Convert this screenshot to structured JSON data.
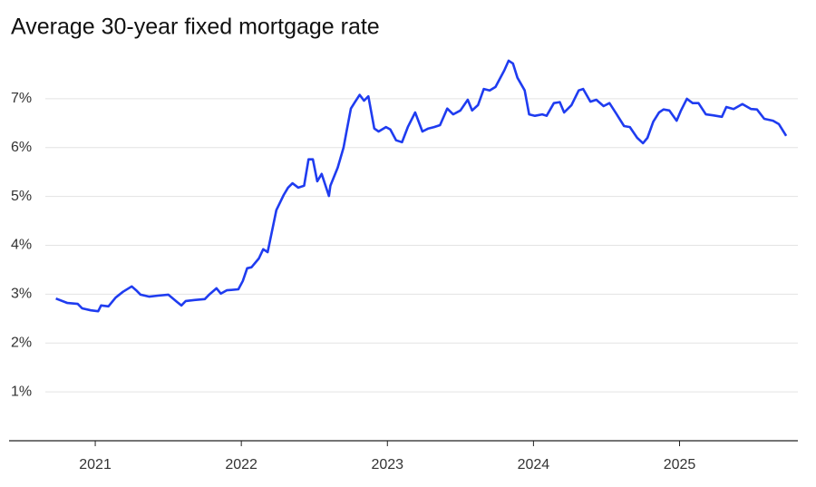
{
  "chart_data": {
    "type": "line",
    "title": "Average 30-year fixed mortgage rate",
    "x": [
      2020.73,
      2020.81,
      2020.88,
      2020.91,
      2020.97,
      2021.02,
      2021.04,
      2021.09,
      2021.14,
      2021.19,
      2021.25,
      2021.28,
      2021.31,
      2021.37,
      2021.43,
      2021.5,
      2021.56,
      2021.59,
      2021.62,
      2021.68,
      2021.75,
      2021.78,
      2021.83,
      2021.86,
      2021.9,
      2021.98,
      2022.01,
      2022.04,
      2022.07,
      2022.12,
      2022.15,
      2022.18,
      2022.21,
      2022.24,
      2022.29,
      2022.32,
      2022.35,
      2022.39,
      2022.43,
      2022.46,
      2022.49,
      2022.52,
      2022.55,
      2022.6,
      2022.61,
      2022.66,
      2022.7,
      2022.72,
      2022.75,
      2022.78,
      2022.81,
      2022.84,
      2022.87,
      2022.91,
      2022.94,
      2022.99,
      2023.02,
      2023.06,
      2023.1,
      2023.14,
      2023.19,
      2023.24,
      2023.28,
      2023.32,
      2023.36,
      2023.41,
      2023.45,
      2023.5,
      2023.55,
      2023.58,
      2023.62,
      2023.66,
      2023.7,
      2023.74,
      2023.8,
      2023.83,
      2023.86,
      2023.89,
      2023.94,
      2023.97,
      2024.01,
      2024.06,
      2024.09,
      2024.14,
      2024.18,
      2024.21,
      2024.26,
      2024.31,
      2024.34,
      2024.39,
      2024.43,
      2024.48,
      2024.52,
      2024.57,
      2024.62,
      2024.66,
      2024.71,
      2024.75,
      2024.78,
      2024.82,
      2024.86,
      2024.89,
      2024.93,
      2024.98,
      2025.01,
      2025.05,
      2025.09,
      2025.13,
      2025.18,
      2025.23,
      2025.29,
      2025.32,
      2025.37,
      2025.43,
      2025.49,
      2025.53,
      2025.58,
      2025.64,
      2025.68,
      2025.73
    ],
    "series": [
      {
        "color": "#1f3cf0",
        "values": [
          2.91,
          2.82,
          2.8,
          2.71,
          2.67,
          2.65,
          2.77,
          2.75,
          2.93,
          3.05,
          3.16,
          3.08,
          2.99,
          2.95,
          2.97,
          2.99,
          2.84,
          2.77,
          2.86,
          2.88,
          2.9,
          2.99,
          3.12,
          3.01,
          3.08,
          3.1,
          3.27,
          3.53,
          3.55,
          3.73,
          3.92,
          3.86,
          4.29,
          4.72,
          5.03,
          5.18,
          5.27,
          5.18,
          5.22,
          5.76,
          5.76,
          5.31,
          5.46,
          5.01,
          5.22,
          5.59,
          6.0,
          6.33,
          6.8,
          6.94,
          7.08,
          6.96,
          7.05,
          6.39,
          6.33,
          6.42,
          6.37,
          6.15,
          6.11,
          6.42,
          6.72,
          6.33,
          6.39,
          6.42,
          6.46,
          6.8,
          6.68,
          6.76,
          6.98,
          6.76,
          6.87,
          7.2,
          7.17,
          7.24,
          7.58,
          7.78,
          7.72,
          7.43,
          7.17,
          6.68,
          6.65,
          6.68,
          6.65,
          6.91,
          6.93,
          6.72,
          6.87,
          7.17,
          7.2,
          6.94,
          6.98,
          6.85,
          6.91,
          6.68,
          6.44,
          6.42,
          6.2,
          6.09,
          6.2,
          6.53,
          6.72,
          6.78,
          6.76,
          6.55,
          6.76,
          7.0,
          6.91,
          6.91,
          6.68,
          6.66,
          6.63,
          6.83,
          6.79,
          6.89,
          6.79,
          6.78,
          6.59,
          6.55,
          6.48,
          6.24
        ]
      }
    ],
    "xlim": [
      2020.41,
      2025.81
    ],
    "xticks": [
      2021,
      2022,
      2023,
      2024,
      2025
    ],
    "ylim": [
      0,
      8
    ],
    "yticks": [
      {
        "value": 1,
        "label": "1%"
      },
      {
        "value": 2,
        "label": "2%"
      },
      {
        "value": 3,
        "label": "3%"
      },
      {
        "value": 4,
        "label": "4%"
      },
      {
        "value": 5,
        "label": "5%"
      },
      {
        "value": 6,
        "label": "6%"
      },
      {
        "value": 7,
        "label": "7%"
      }
    ],
    "grid": true
  }
}
